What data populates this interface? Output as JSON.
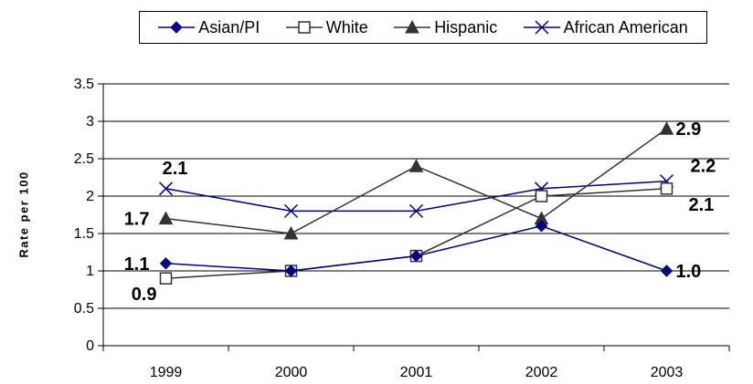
{
  "chart_data": {
    "type": "line",
    "title": "",
    "xlabel": "",
    "ylabel": "Rate per 100",
    "categories": [
      "1999",
      "2000",
      "2001",
      "2002",
      "2003"
    ],
    "ylim": [
      0,
      3.5
    ],
    "yticks": [
      0,
      0.5,
      1,
      1.5,
      2,
      2.5,
      3,
      3.5
    ],
    "ytick_labels": [
      "0",
      "0.5",
      "1",
      "1.5",
      "2",
      "2.5",
      "3",
      "3.5"
    ],
    "grid": true,
    "legend_position": "top",
    "series": [
      {
        "name": "Asian/PI",
        "values": [
          1.1,
          1.0,
          1.2,
          1.6,
          1.0
        ],
        "color": "#000080",
        "marker": "diamond",
        "labels": [
          {
            "index": 0,
            "text": "1.1",
            "side": "left"
          },
          {
            "index": 4,
            "text": "1.0",
            "side": "right"
          }
        ]
      },
      {
        "name": "White",
        "values": [
          0.9,
          1.0,
          1.2,
          2.0,
          2.1
        ],
        "color": "#333333",
        "marker": "square-open",
        "labels": [
          {
            "index": 0,
            "text": "0.9",
            "side": "below-left"
          },
          {
            "index": 4,
            "text": "2.1",
            "side": "below-right"
          }
        ]
      },
      {
        "name": "Hispanic",
        "values": [
          1.7,
          1.5,
          2.4,
          1.7,
          2.9
        ],
        "color": "#333333",
        "marker": "triangle",
        "labels": [
          {
            "index": 0,
            "text": "1.7",
            "side": "left"
          },
          {
            "index": 4,
            "text": "2.9",
            "side": "right"
          }
        ]
      },
      {
        "name": "African American",
        "values": [
          2.1,
          1.8,
          1.8,
          2.1,
          2.2
        ],
        "color": "#000080",
        "marker": "x",
        "labels": [
          {
            "index": 0,
            "text": "2.1",
            "side": "above"
          },
          {
            "index": 4,
            "text": "2.2",
            "side": "above-right"
          }
        ]
      }
    ]
  }
}
